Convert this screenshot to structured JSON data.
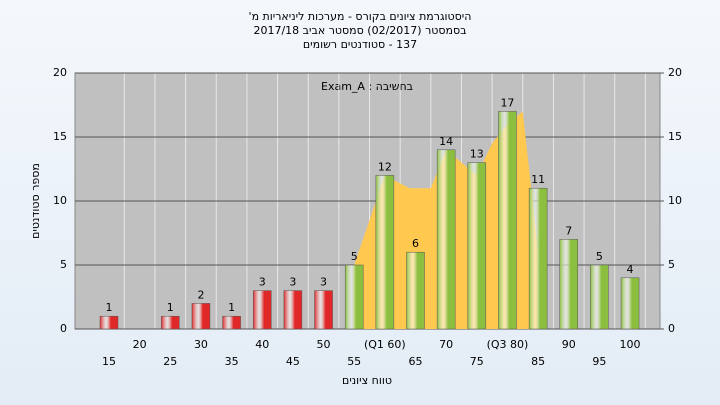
{
  "chart_data": {
    "type": "bar",
    "title": [
      "היסטוגרמת ציונים בקורס - מערכות ליניאריות מ'",
      "בסמסטר  (02/2017)  סמסטר אביב 2017/18",
      "137 - סטודנטים רשומים"
    ],
    "annotation": "Exam_A : בחשיבה",
    "y_label": "מספר סטודנטים",
    "x_label": "טווח ציונים",
    "categories": [
      "15",
      "20",
      "25",
      "30",
      "35",
      "40",
      "45",
      "50",
      "55",
      "(Q1 60)",
      "65",
      "70",
      "75",
      "(Q3 80)",
      "85",
      "90",
      "95",
      "100"
    ],
    "values": [
      1,
      0,
      1,
      2,
      1,
      3,
      3,
      3,
      5,
      12,
      6,
      14,
      13,
      17,
      11,
      7,
      5,
      4
    ],
    "colors": [
      "#e02828",
      "#e02828",
      "#e02828",
      "#e02828",
      "#e02828",
      "#e02828",
      "#e02828",
      "#e02828",
      "#8cbf3f",
      "#8cbf3f",
      "#8cbf3f",
      "#8cbf3f",
      "#8cbf3f",
      "#8cbf3f",
      "#8cbf3f",
      "#8cbf3f",
      "#8cbf3f",
      "#8cbf3f"
    ],
    "band": {
      "color": "#ffc94f",
      "x": [
        8,
        9,
        9.8,
        10.5,
        11,
        12,
        12.5,
        13,
        13.5,
        14
      ],
      "values": [
        5,
        12,
        11,
        11,
        14,
        12,
        14.5,
        16,
        17,
        6
      ]
    },
    "ylim": [
      0,
      20
    ],
    "yticks": [
      0,
      5,
      10,
      15,
      20
    ],
    "y2lim": [
      0,
      20
    ],
    "y2ticks": [
      0,
      5,
      10,
      15,
      20
    ],
    "grid": true
  }
}
